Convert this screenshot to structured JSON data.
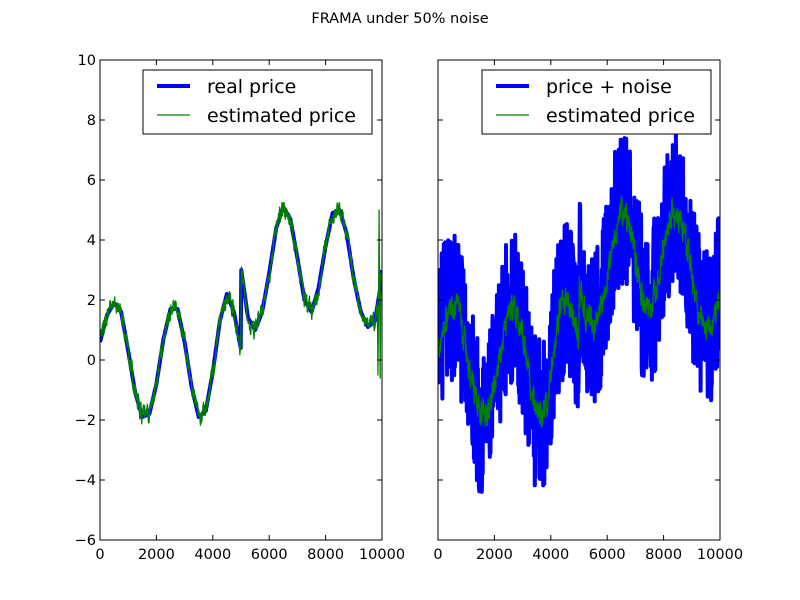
{
  "chart_data": {
    "suptitle": "FRAMA under 50% noise",
    "colors": {
      "real": "#0000ff",
      "estimate": "#008000",
      "frame": "#000000",
      "background": "#ffffff"
    },
    "panels": [
      {
        "type": "line",
        "title": "",
        "xlim": [
          0,
          10000
        ],
        "ylim": [
          -6,
          10
        ],
        "xticks": [
          0,
          2000,
          4000,
          6000,
          8000,
          10000
        ],
        "yticks": [
          -6,
          -4,
          -2,
          0,
          2,
          4,
          6,
          8,
          10
        ],
        "show_ytick_labels": true,
        "grid": false,
        "legend_position": "upper right",
        "series": [
          {
            "name": "real price",
            "role": "real",
            "linewidth": "thick",
            "x": [
              0,
              250,
              500,
              750,
              1000,
              1250,
              1500,
              1750,
              2000,
              2250,
              2500,
              2750,
              3000,
              3250,
              3500,
              3750,
              4000,
              4250,
              4500,
              4750,
              4990,
              5010,
              5250,
              5500,
              5750,
              6000,
              6250,
              6500,
              6750,
              7000,
              7250,
              7500,
              7750,
              8000,
              8250,
              8500,
              8750,
              9000,
              9250,
              9500,
              9750,
              9990,
              10000
            ],
            "y": [
              0.6,
              1.5,
              1.9,
              1.6,
              0.3,
              -1.1,
              -1.9,
              -1.8,
              -0.8,
              0.7,
              1.7,
              1.7,
              0.6,
              -0.9,
              -1.9,
              -1.7,
              -0.4,
              1.3,
              2.2,
              1.6,
              0.4,
              3.0,
              1.4,
              1.0,
              1.6,
              2.9,
              4.4,
              5.1,
              4.7,
              3.4,
              2.0,
              1.6,
              2.4,
              3.8,
              4.9,
              5.0,
              4.2,
              2.7,
              1.6,
              1.1,
              1.3,
              2.7,
              3.0
            ],
            "noise_amplitude": 0
          },
          {
            "name": "estimated price",
            "role": "estimate",
            "linewidth": "thin",
            "x": [
              0,
              250,
              500,
              750,
              1000,
              1250,
              1500,
              1750,
              2000,
              2250,
              2500,
              2750,
              3000,
              3250,
              3500,
              3750,
              4000,
              4250,
              4500,
              4750,
              4990,
              5010,
              5250,
              5500,
              5750,
              6000,
              6250,
              6500,
              6750,
              7000,
              7250,
              7500,
              7750,
              8000,
              8250,
              8500,
              8750,
              9000,
              9250,
              9500,
              9750,
              9990,
              10000
            ],
            "y": [
              0.6,
              1.5,
              1.9,
              1.6,
              0.3,
              -1.1,
              -1.9,
              -1.8,
              -0.8,
              0.7,
              1.7,
              1.7,
              0.6,
              -0.9,
              -1.9,
              -1.7,
              -0.4,
              1.3,
              2.2,
              1.6,
              0.4,
              3.0,
              1.4,
              1.0,
              1.6,
              2.9,
              4.4,
              5.1,
              4.7,
              3.4,
              2.0,
              1.6,
              2.4,
              3.8,
              4.9,
              5.0,
              4.2,
              2.7,
              1.6,
              1.1,
              1.3,
              2.7,
              3.0
            ],
            "noise_amplitude": 0.35,
            "spikes": [
              {
                "x": 9880,
                "y": 5.0
              },
              {
                "x": 9920,
                "y": -0.6
              },
              {
                "x": 9840,
                "y": -0.5
              }
            ]
          }
        ]
      },
      {
        "type": "line",
        "title": "",
        "xlim": [
          0,
          10000
        ],
        "ylim": [
          -6,
          10
        ],
        "xticks": [
          0,
          2000,
          4000,
          6000,
          8000,
          10000
        ],
        "yticks": [
          -6,
          -4,
          -2,
          0,
          2,
          4,
          6,
          8,
          10
        ],
        "show_ytick_labels": false,
        "grid": false,
        "legend_position": "upper right",
        "series": [
          {
            "name": "price + noise",
            "role": "real",
            "linewidth": "thick",
            "x": [
              0,
              250,
              500,
              750,
              1000,
              1250,
              1500,
              1750,
              2000,
              2250,
              2500,
              2750,
              3000,
              3250,
              3500,
              3750,
              4000,
              4250,
              4500,
              4750,
              4990,
              5010,
              5250,
              5500,
              5750,
              6000,
              6250,
              6500,
              6750,
              7000,
              7250,
              7500,
              7750,
              8000,
              8250,
              8500,
              8750,
              9000,
              9250,
              9500,
              9750,
              9990,
              10000
            ],
            "y": [
              0.6,
              1.5,
              1.9,
              1.6,
              0.3,
              -1.1,
              -1.9,
              -1.8,
              -0.8,
              0.7,
              1.7,
              1.7,
              0.6,
              -0.9,
              -1.9,
              -1.7,
              -0.4,
              1.3,
              2.2,
              1.6,
              0.4,
              3.0,
              1.4,
              1.0,
              1.6,
              2.9,
              4.4,
              5.1,
              4.7,
              3.4,
              2.0,
              1.6,
              2.4,
              3.8,
              4.9,
              5.0,
              4.2,
              2.7,
              1.6,
              1.1,
              1.3,
              2.7,
              3.0
            ],
            "noise_amplitude": 2.6
          },
          {
            "name": "estimated price",
            "role": "estimate",
            "linewidth": "thin",
            "x": [
              0,
              250,
              500,
              750,
              1000,
              1250,
              1500,
              1750,
              2000,
              2250,
              2500,
              2750,
              3000,
              3250,
              3500,
              3750,
              4000,
              4250,
              4500,
              4750,
              4990,
              5010,
              5250,
              5500,
              5750,
              6000,
              6250,
              6500,
              6750,
              7000,
              7250,
              7500,
              7750,
              8000,
              8250,
              8500,
              8750,
              9000,
              9250,
              9500,
              9750,
              9990,
              10000
            ],
            "y": [
              0.5,
              1.3,
              1.9,
              1.5,
              0.2,
              -0.9,
              -1.8,
              -1.9,
              -0.9,
              0.6,
              1.7,
              1.8,
              0.7,
              -0.8,
              -1.8,
              -1.8,
              -0.5,
              1.2,
              2.1,
              1.7,
              0.6,
              2.6,
              1.5,
              1.0,
              1.5,
              2.8,
              4.2,
              5.0,
              4.6,
              3.4,
              2.0,
              1.6,
              2.3,
              3.7,
              4.8,
              5.0,
              4.2,
              2.8,
              1.6,
              1.1,
              1.3,
              2.4,
              2.6
            ],
            "noise_amplitude": 0.55
          }
        ]
      }
    ]
  }
}
